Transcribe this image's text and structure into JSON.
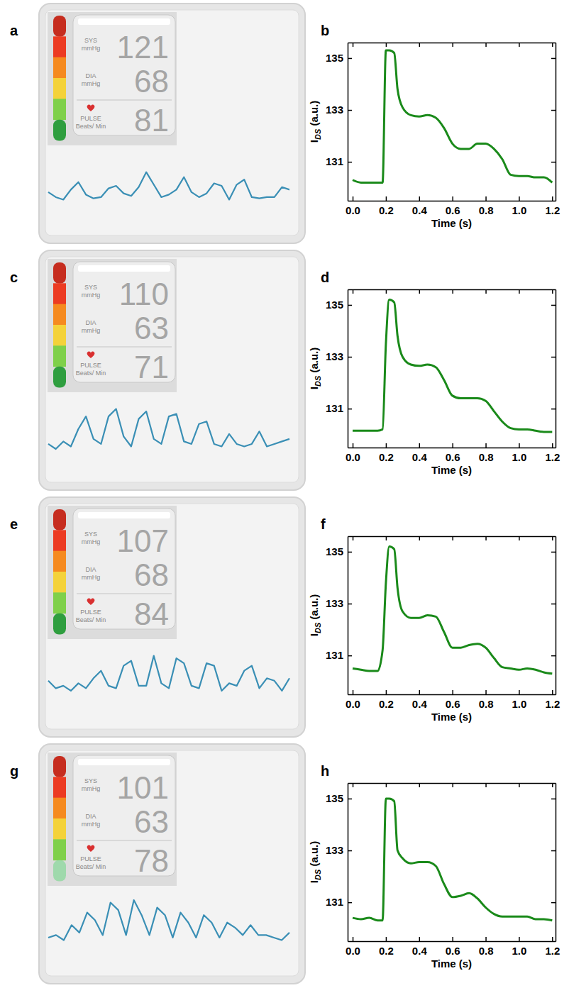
{
  "panel_labels": [
    "a",
    "b",
    "c",
    "d",
    "e",
    "f",
    "g",
    "h"
  ],
  "monitor_text": {
    "sys": "SYS",
    "dia": "DIA",
    "pulse": "PULSE",
    "pressure_unit": "mmHg",
    "pulse_unit": "Beats/ Min"
  },
  "monitors": [
    {
      "sys": 121,
      "dia": 68,
      "pulse": 81,
      "waveform": [
        5.0,
        4.6,
        4.4,
        5.2,
        5.8,
        4.8,
        4.5,
        4.6,
        5.3,
        5.5,
        4.9,
        4.7,
        5.4,
        6.6,
        5.6,
        4.6,
        4.8,
        5.2,
        6.2,
        5.0,
        4.6,
        4.9,
        5.7,
        5.5,
        4.4,
        5.6,
        6.0,
        4.6,
        4.5,
        4.6,
        4.6,
        5.4,
        5.2
      ]
    },
    {
      "sys": 110,
      "dia": 63,
      "pulse": 71,
      "waveform": [
        4.6,
        4.2,
        4.8,
        4.4,
        5.8,
        6.8,
        5.0,
        4.6,
        6.8,
        7.4,
        5.2,
        4.4,
        6.6,
        7.2,
        5.0,
        4.6,
        6.8,
        7.0,
        4.8,
        4.6,
        6.2,
        6.4,
        4.6,
        4.4,
        5.4,
        4.6,
        4.4,
        4.6,
        5.6,
        4.4,
        4.6,
        4.8,
        5.0
      ]
    },
    {
      "sys": 107,
      "dia": 68,
      "pulse": 84,
      "waveform": [
        5.4,
        4.8,
        5.0,
        4.6,
        5.2,
        4.8,
        5.6,
        6.2,
        5.0,
        4.8,
        6.6,
        7.0,
        5.0,
        5.0,
        7.4,
        5.2,
        4.8,
        7.2,
        6.8,
        5.0,
        4.8,
        6.8,
        6.6,
        4.6,
        5.2,
        5.0,
        6.2,
        6.6,
        4.8,
        5.6,
        5.4,
        4.6,
        5.6
      ]
    },
    {
      "sys": 101,
      "dia": 63,
      "pulse": 78,
      "waveform": [
        4.6,
        4.8,
        4.4,
        5.6,
        5.0,
        6.6,
        6.0,
        4.8,
        7.4,
        6.8,
        4.8,
        7.6,
        6.4,
        4.8,
        7.0,
        6.4,
        4.6,
        6.6,
        5.8,
        4.6,
        6.4,
        5.8,
        4.6,
        5.8,
        5.4,
        4.8,
        5.6,
        4.8,
        4.8,
        4.6,
        4.4,
        5.0
      ]
    }
  ],
  "chart_data": [
    {
      "type": "line",
      "xlabel": "Time (s)",
      "ylabel": [
        "I",
        "DS",
        " (a.u.)"
      ],
      "color": "#1a8a1a",
      "xlim": [
        -0.03,
        1.22
      ],
      "ylim": [
        129.5,
        135.6
      ],
      "xticks": [
        {
          "value": 0,
          "label": "0.0"
        },
        {
          "value": 0.2,
          "label": "0.2"
        },
        {
          "value": 0.4,
          "label": "0.4"
        },
        {
          "value": 0.6,
          "label": "0.6"
        },
        {
          "value": 0.8,
          "label": "0.8"
        },
        {
          "value": 1,
          "label": "1.0"
        },
        {
          "value": 1.2,
          "label": "1.2"
        }
      ],
      "yticks": [
        131,
        133,
        135
      ],
      "x": [
        0,
        0.05,
        0.1,
        0.15,
        0.18,
        0.2,
        0.22,
        0.25,
        0.27,
        0.3,
        0.35,
        0.4,
        0.45,
        0.5,
        0.55,
        0.6,
        0.65,
        0.7,
        0.75,
        0.8,
        0.85,
        0.9,
        0.95,
        1.0,
        1.05,
        1.1,
        1.15,
        1.2
      ],
      "values": [
        130.3,
        130.2,
        130.2,
        130.2,
        130.2,
        135.3,
        135.3,
        135.2,
        133.8,
        133.1,
        132.8,
        132.75,
        132.8,
        132.7,
        132.3,
        131.7,
        131.5,
        131.5,
        131.7,
        131.7,
        131.5,
        131.1,
        130.5,
        130.45,
        130.45,
        130.4,
        130.4,
        130.2
      ]
    },
    {
      "type": "line",
      "xlabel": "Time (s)",
      "ylabel": [
        "I",
        "DS",
        " (a.u.)"
      ],
      "color": "#1a8a1a",
      "xlim": [
        -0.03,
        1.22
      ],
      "ylim": [
        129.5,
        135.6
      ],
      "xticks": [
        {
          "value": 0,
          "label": "0.0"
        },
        {
          "value": 0.2,
          "label": "0.2"
        },
        {
          "value": 0.4,
          "label": "0.4"
        },
        {
          "value": 0.6,
          "label": "0.6"
        },
        {
          "value": 0.8,
          "label": "0.8"
        },
        {
          "value": 1,
          "label": "1.0"
        },
        {
          "value": 1.2,
          "label": "1.2"
        }
      ],
      "yticks": [
        131,
        133,
        135
      ],
      "x": [
        0,
        0.05,
        0.1,
        0.15,
        0.18,
        0.2,
        0.22,
        0.25,
        0.27,
        0.3,
        0.35,
        0.4,
        0.45,
        0.5,
        0.55,
        0.6,
        0.65,
        0.7,
        0.75,
        0.8,
        0.85,
        0.9,
        0.95,
        1.0,
        1.05,
        1.1,
        1.15,
        1.2
      ],
      "values": [
        130.15,
        130.15,
        130.15,
        130.15,
        130.2,
        133.5,
        135.2,
        135.1,
        133.8,
        133.0,
        132.7,
        132.65,
        132.7,
        132.6,
        132.1,
        131.5,
        131.4,
        131.4,
        131.4,
        131.3,
        130.9,
        130.5,
        130.25,
        130.2,
        130.2,
        130.15,
        130.1,
        130.1
      ]
    },
    {
      "type": "line",
      "xlabel": "Time (s)",
      "ylabel": [
        "I",
        "DS",
        " (a.u.)"
      ],
      "color": "#1a8a1a",
      "xlim": [
        -0.03,
        1.22
      ],
      "ylim": [
        129.5,
        135.6
      ],
      "xticks": [
        {
          "value": 0,
          "label": "0.0"
        },
        {
          "value": 0.2,
          "label": "0.2"
        },
        {
          "value": 0.4,
          "label": "0.4"
        },
        {
          "value": 0.6,
          "label": "0.6"
        },
        {
          "value": 0.8,
          "label": "0.8"
        },
        {
          "value": 1,
          "label": "1.0"
        },
        {
          "value": 1.2,
          "label": "1.2"
        }
      ],
      "yticks": [
        131,
        133,
        135
      ],
      "x": [
        0,
        0.05,
        0.1,
        0.15,
        0.18,
        0.2,
        0.22,
        0.25,
        0.27,
        0.3,
        0.35,
        0.4,
        0.45,
        0.5,
        0.55,
        0.6,
        0.65,
        0.7,
        0.75,
        0.8,
        0.85,
        0.9,
        0.95,
        1.0,
        1.05,
        1.1,
        1.15,
        1.2
      ],
      "values": [
        130.5,
        130.45,
        130.4,
        130.4,
        131.2,
        133.8,
        135.2,
        135.1,
        133.6,
        132.7,
        132.45,
        132.45,
        132.55,
        132.5,
        131.9,
        131.3,
        131.3,
        131.4,
        131.45,
        131.3,
        130.9,
        130.55,
        130.5,
        130.45,
        130.5,
        130.45,
        130.35,
        130.3
      ]
    },
    {
      "type": "line",
      "xlabel": "Time (s)",
      "ylabel": [
        "I",
        "DS",
        " (a.u.)"
      ],
      "color": "#1a8a1a",
      "xlim": [
        -0.03,
        1.22
      ],
      "ylim": [
        129.5,
        135.6
      ],
      "xticks": [
        {
          "value": 0,
          "label": "0.0"
        },
        {
          "value": 0.2,
          "label": "0.2"
        },
        {
          "value": 0.4,
          "label": "0.4"
        },
        {
          "value": 0.6,
          "label": "0.6"
        },
        {
          "value": 0.8,
          "label": "0.8"
        },
        {
          "value": 1,
          "label": "1.0"
        },
        {
          "value": 1.2,
          "label": "1.2"
        }
      ],
      "yticks": [
        131,
        133,
        135
      ],
      "x": [
        0,
        0.05,
        0.1,
        0.15,
        0.18,
        0.2,
        0.22,
        0.25,
        0.27,
        0.3,
        0.35,
        0.4,
        0.45,
        0.5,
        0.55,
        0.6,
        0.65,
        0.7,
        0.75,
        0.8,
        0.85,
        0.9,
        0.95,
        1.0,
        1.05,
        1.1,
        1.15,
        1.2
      ],
      "values": [
        130.4,
        130.35,
        130.4,
        130.3,
        130.3,
        135.0,
        135.0,
        134.9,
        133.0,
        132.7,
        132.5,
        132.55,
        132.55,
        132.4,
        131.7,
        131.2,
        131.25,
        131.35,
        131.15,
        130.8,
        130.55,
        130.45,
        130.45,
        130.45,
        130.45,
        130.35,
        130.35,
        130.3
      ]
    }
  ]
}
